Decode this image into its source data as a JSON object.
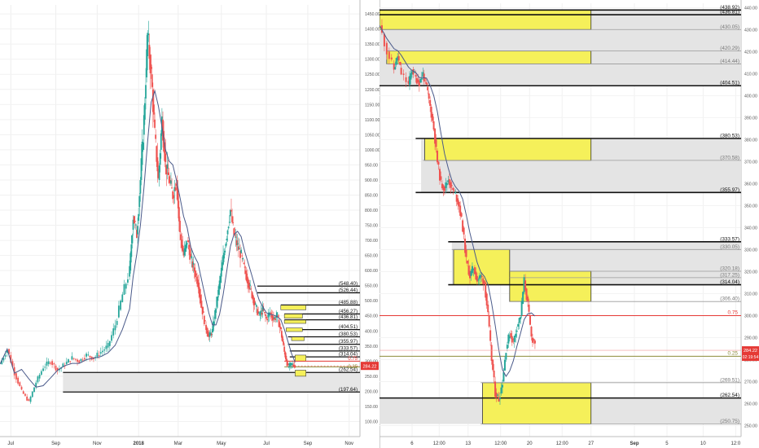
{
  "chart_data": [
    {
      "type": "candlestick",
      "panel": "left",
      "ylim": [
        50,
        1480
      ],
      "y_ticks": [
        "100.00",
        "150.00",
        "200.00",
        "250.00",
        "300.00",
        "350.00",
        "400.00",
        "450.00",
        "500.00",
        "550.00",
        "600.00",
        "650.00",
        "700.00",
        "750.00",
        "800.00",
        "850.00",
        "900.00",
        "950.00",
        "1000.00",
        "1050.00",
        "1100.00",
        "1150.00",
        "1200.00",
        "1250.00",
        "1300.00",
        "1350.00",
        "1400.00",
        "1450.00"
      ],
      "x_ticks": [
        "Jul",
        "Sep",
        "Nov",
        "2018",
        "Mar",
        "May",
        "Jul",
        "Sep",
        "Nov"
      ],
      "last_price": "284.22",
      "price_path": [
        [
          0,
          290
        ],
        [
          0.02,
          340
        ],
        [
          0.04,
          260
        ],
        [
          0.06,
          200
        ],
        [
          0.08,
          165
        ],
        [
          0.1,
          230
        ],
        [
          0.12,
          280
        ],
        [
          0.14,
          300
        ],
        [
          0.16,
          270
        ],
        [
          0.18,
          290
        ],
        [
          0.2,
          310
        ],
        [
          0.22,
          300
        ],
        [
          0.24,
          320
        ],
        [
          0.26,
          310
        ],
        [
          0.28,
          330
        ],
        [
          0.3,
          350
        ],
        [
          0.32,
          420
        ],
        [
          0.34,
          520
        ],
        [
          0.36,
          600
        ],
        [
          0.37,
          780
        ],
        [
          0.38,
          720
        ],
        [
          0.39,
          900
        ],
        [
          0.4,
          1100
        ],
        [
          0.41,
          1380
        ],
        [
          0.42,
          1250
        ],
        [
          0.43,
          1050
        ],
        [
          0.44,
          900
        ],
        [
          0.45,
          1100
        ],
        [
          0.46,
          950
        ],
        [
          0.47,
          900
        ],
        [
          0.48,
          850
        ],
        [
          0.49,
          900
        ],
        [
          0.5,
          720
        ],
        [
          0.51,
          650
        ],
        [
          0.52,
          700
        ],
        [
          0.53,
          640
        ],
        [
          0.54,
          600
        ],
        [
          0.55,
          560
        ],
        [
          0.56,
          480
        ],
        [
          0.57,
          420
        ],
        [
          0.58,
          380
        ],
        [
          0.59,
          400
        ],
        [
          0.6,
          480
        ],
        [
          0.61,
          560
        ],
        [
          0.62,
          640
        ],
        [
          0.63,
          720
        ],
        [
          0.64,
          800
        ],
        [
          0.65,
          720
        ],
        [
          0.66,
          680
        ],
        [
          0.67,
          650
        ],
        [
          0.68,
          600
        ],
        [
          0.69,
          560
        ],
        [
          0.7,
          520
        ],
        [
          0.71,
          480
        ],
        [
          0.72,
          450
        ],
        [
          0.73,
          470
        ],
        [
          0.74,
          440
        ],
        [
          0.75,
          460
        ],
        [
          0.76,
          440
        ],
        [
          0.77,
          450
        ],
        [
          0.78,
          400
        ],
        [
          0.79,
          330
        ],
        [
          0.8,
          280
        ],
        [
          0.81,
          290
        ],
        [
          0.82,
          284
        ]
      ],
      "zones": [
        {
          "label": "(548.40)",
          "value": 548.4
        },
        {
          "label": "(526.44)",
          "value": 526.44
        },
        {
          "label": "(485.88)",
          "value": 485.88
        },
        {
          "label": "(456.27)",
          "value": 456.27
        },
        {
          "label": "(436.81)",
          "value": 436.81
        },
        {
          "label": "(404.51)",
          "value": 404.51
        },
        {
          "label": "(380.53)",
          "value": 380.53
        },
        {
          "label": "(355.97)",
          "value": 355.97
        },
        {
          "label": "(333.57)",
          "value": 333.57
        },
        {
          "label": "(314.04)",
          "value": 314.04
        },
        {
          "label": "(262.54)",
          "value": 262.54
        },
        {
          "label": "(197.64)",
          "value": 197.64
        }
      ],
      "fib_labels": [
        "0.75",
        "0.25"
      ]
    },
    {
      "type": "candlestick",
      "panel": "right",
      "ylim": [
        245,
        442
      ],
      "y_ticks": [
        "250.00",
        "260.00",
        "270.00",
        "280.00",
        "290.00",
        "300.00",
        "310.00",
        "320.00",
        "330.00",
        "340.00",
        "350.00",
        "360.00",
        "370.00",
        "380.00",
        "390.00",
        "400.00",
        "410.00",
        "420.00",
        "430.00",
        "440.00"
      ],
      "x_ticks": [
        "6",
        "12:00",
        "13",
        "12:00",
        "20",
        "12:00",
        "27",
        "Sep",
        "5",
        "10",
        "12:0"
      ],
      "last_price": "284.22",
      "countdown": "02:19:54",
      "levels": [
        {
          "label": "(438.92)",
          "value": 438.92,
          "style": "black"
        },
        {
          "label": "(436.81)",
          "value": 436.81,
          "style": "black"
        },
        {
          "label": "(430.05)",
          "value": 430.05,
          "style": "gray"
        },
        {
          "label": "(420.29)",
          "value": 420.29,
          "style": "gray"
        },
        {
          "label": "(414.44)",
          "value": 414.44,
          "style": "gray"
        },
        {
          "label": "(404.51)",
          "value": 404.51,
          "style": "black"
        },
        {
          "label": "(380.53)",
          "value": 380.53,
          "style": "black"
        },
        {
          "label": "(370.58)",
          "value": 370.58,
          "style": "gray"
        },
        {
          "label": "(355.97)",
          "value": 355.97,
          "style": "black"
        },
        {
          "label": "(333.57)",
          "value": 333.57,
          "style": "black"
        },
        {
          "label": "(330.05)",
          "value": 330.05,
          "style": "gray"
        },
        {
          "label": "(320.18)",
          "value": 320.18,
          "style": "gray"
        },
        {
          "label": "(317.25)",
          "value": 317.25,
          "style": "gray"
        },
        {
          "label": "(314.04)",
          "value": 314.04,
          "style": "black"
        },
        {
          "label": "(306.40)",
          "value": 306.4,
          "style": "gray"
        },
        {
          "label": "(269.51)",
          "value": 269.51,
          "style": "gray"
        },
        {
          "label": "(262.54)",
          "value": 262.54,
          "style": "black"
        },
        {
          "label": "(250.75)",
          "value": 250.75,
          "style": "gray"
        }
      ],
      "fib": [
        {
          "label": "0.75",
          "value": 300.0,
          "color": "#e53935"
        },
        {
          "label": "0.25",
          "value": 281.5,
          "color": "#8d8d3a"
        }
      ],
      "price_path": [
        [
          0.0,
          432
        ],
        [
          0.02,
          420
        ],
        [
          0.04,
          412
        ],
        [
          0.05,
          418
        ],
        [
          0.06,
          410
        ],
        [
          0.08,
          405
        ],
        [
          0.09,
          412
        ],
        [
          0.1,
          408
        ],
        [
          0.11,
          406
        ],
        [
          0.12,
          410
        ],
        [
          0.13,
          404
        ],
        [
          0.14,
          395
        ],
        [
          0.15,
          385
        ],
        [
          0.16,
          370
        ],
        [
          0.17,
          360
        ],
        [
          0.18,
          358
        ],
        [
          0.19,
          362
        ],
        [
          0.2,
          358
        ],
        [
          0.21,
          355
        ],
        [
          0.22,
          350
        ],
        [
          0.23,
          340
        ],
        [
          0.24,
          325
        ],
        [
          0.25,
          318
        ],
        [
          0.26,
          322
        ],
        [
          0.27,
          316
        ],
        [
          0.28,
          318
        ],
        [
          0.29,
          315
        ],
        [
          0.3,
          300
        ],
        [
          0.31,
          280
        ],
        [
          0.32,
          265
        ],
        [
          0.33,
          262
        ],
        [
          0.34,
          270
        ],
        [
          0.35,
          285
        ],
        [
          0.36,
          292
        ],
        [
          0.37,
          288
        ],
        [
          0.38,
          295
        ],
        [
          0.39,
          300
        ],
        [
          0.4,
          316
        ],
        [
          0.41,
          305
        ],
        [
          0.42,
          290
        ],
        [
          0.43,
          288
        ]
      ]
    }
  ]
}
